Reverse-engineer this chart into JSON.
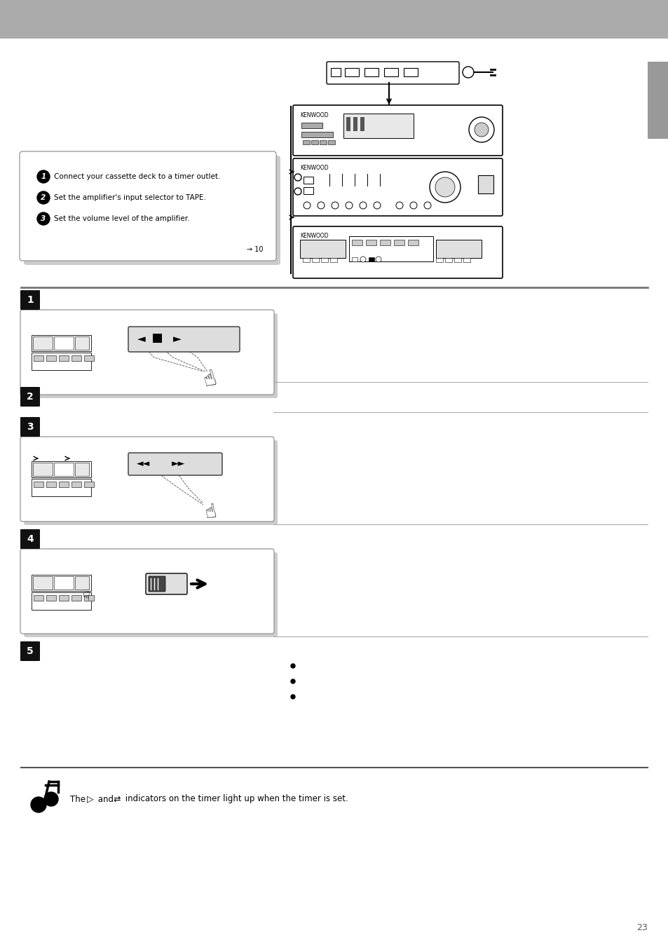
{
  "header_color": "#aaaaaa",
  "bg_color": "#ffffff",
  "tab_color": "#999999",
  "step_badge_color": "#111111",
  "step_badge_text": "#ffffff",
  "box_edge": "#888888",
  "separator_color": "#888888",
  "body_text_color": "#000000",
  "note_text": "The Ù and Ú indicators on the timer light up when the timer is set.",
  "page_num": "23",
  "prep_items": [
    "Connect your cassette deck to a timer outlet.",
    "Set the amplifier's input selector to TAPE.",
    "Set the volume level of the amplifier."
  ],
  "step1_right": "",
  "step2_right": "",
  "step3_right": "",
  "step4_right": "",
  "step5_right": ""
}
